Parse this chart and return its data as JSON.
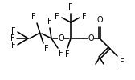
{
  "bg": "#ffffff",
  "lc": "#000000",
  "fs": 7.0,
  "lw": 1.15,
  "figsize": [
    1.68,
    1.0
  ],
  "dpi": 100,
  "xlim": [
    0,
    168
  ],
  "ylim": [
    0,
    100
  ]
}
